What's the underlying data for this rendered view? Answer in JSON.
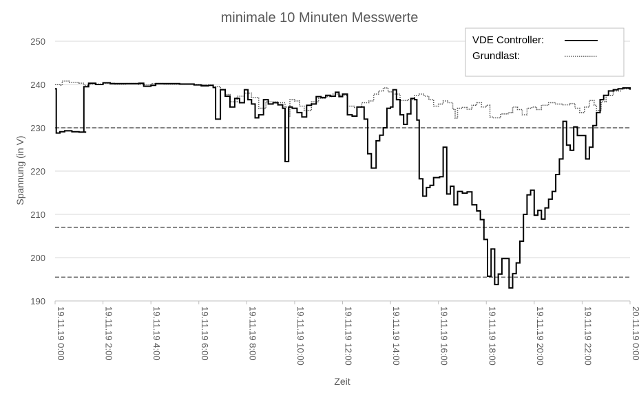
{
  "chart_data": {
    "type": "line",
    "title": "minimale 10 Minuten Messwerte",
    "xlabel": "Zeit",
    "ylabel": "Spannung (in V)",
    "ylim": [
      190,
      250
    ],
    "yticks": [
      190,
      200,
      210,
      220,
      230,
      240,
      250
    ],
    "xlim": [
      0,
      24
    ],
    "x_unit": "hours since 19.11.19 0:00",
    "xtick_labels": [
      "19.11.19 0:00",
      "19.11.19 2:00",
      "19.11.19 4:00",
      "19.11.19 6:00",
      "19.11.19 8:00",
      "19.11.19 10:00",
      "19.11.19 12:00",
      "19.11.19 14:00",
      "19.11.19 16:00",
      "19.11.19 18:00",
      "19.11.19 20:00",
      "19.11.19 22:00",
      "20.11.19 0:00"
    ],
    "grid": "horizontal",
    "legend": "top-right",
    "reference_lines": [
      230,
      207,
      195.5
    ],
    "series": [
      {
        "name": "VDE Controller:",
        "style": "solid",
        "color": "#000000",
        "points": [
          [
            0,
            239
          ],
          [
            0.05,
            228.8
          ],
          [
            0.2,
            229.1
          ],
          [
            0.4,
            229.3
          ],
          [
            0.7,
            229.1
          ],
          [
            1,
            229
          ],
          [
            1.3,
            229
          ],
          [
            1.2,
            229
          ],
          [
            1.18,
            229
          ],
          [
            1.2,
            239.5
          ],
          [
            1.4,
            240.3
          ],
          [
            1.7,
            240
          ],
          [
            2,
            240.4
          ],
          [
            2.3,
            240.2
          ],
          [
            3,
            240.2
          ],
          [
            3.5,
            240.3
          ],
          [
            3.7,
            239.6
          ],
          [
            4,
            239.8
          ],
          [
            4.2,
            240.2
          ],
          [
            4.8,
            240.2
          ],
          [
            5.2,
            240.1
          ],
          [
            5.8,
            239.9
          ],
          [
            6.1,
            239.7
          ],
          [
            6.4,
            239.8
          ],
          [
            6.6,
            239.3
          ],
          [
            6.7,
            232
          ],
          [
            6.9,
            238.8
          ],
          [
            7.1,
            237.3
          ],
          [
            7.3,
            234.8
          ],
          [
            7.5,
            236.8
          ],
          [
            7.7,
            235.8
          ],
          [
            7.9,
            238.8
          ],
          [
            8.05,
            236.5
          ],
          [
            8.2,
            235.5
          ],
          [
            8.35,
            232.3
          ],
          [
            8.5,
            233
          ],
          [
            8.7,
            236.5
          ],
          [
            8.9,
            235.5
          ],
          [
            9.1,
            235.8
          ],
          [
            9.3,
            235.3
          ],
          [
            9.5,
            234.5
          ],
          [
            9.6,
            222.2
          ],
          [
            9.75,
            234.8
          ],
          [
            9.9,
            234.5
          ],
          [
            10.1,
            233.5
          ],
          [
            10.3,
            232.5
          ],
          [
            10.5,
            235.2
          ],
          [
            10.7,
            235.5
          ],
          [
            10.9,
            237.2
          ],
          [
            11.1,
            237
          ],
          [
            11.3,
            237.5
          ],
          [
            11.5,
            237.3
          ],
          [
            11.7,
            238.2
          ],
          [
            11.85,
            237.2
          ],
          [
            12,
            237.8
          ],
          [
            12.2,
            233
          ],
          [
            12.4,
            232.7
          ],
          [
            12.6,
            234.8
          ],
          [
            12.8,
            234.8
          ],
          [
            12.9,
            232
          ],
          [
            13.05,
            224
          ],
          [
            13.2,
            220.7
          ],
          [
            13.4,
            227
          ],
          [
            13.55,
            228.3
          ],
          [
            13.7,
            230
          ],
          [
            13.85,
            234.5
          ],
          [
            14,
            234.8
          ],
          [
            14.1,
            238.8
          ],
          [
            14.25,
            236.5
          ],
          [
            14.4,
            233
          ],
          [
            14.55,
            230.8
          ],
          [
            14.7,
            233.2
          ],
          [
            14.85,
            236.8
          ],
          [
            15,
            236.5
          ],
          [
            15.1,
            231.8
          ],
          [
            15.2,
            218.2
          ],
          [
            15.35,
            214.2
          ],
          [
            15.5,
            216.2
          ],
          [
            15.65,
            216.7
          ],
          [
            15.8,
            218.5
          ],
          [
            16.05,
            218.7
          ],
          [
            16.2,
            225.5
          ],
          [
            16.35,
            214.7
          ],
          [
            16.5,
            216.5
          ],
          [
            16.65,
            212.2
          ],
          [
            16.8,
            215.3
          ],
          [
            17,
            214.9
          ],
          [
            17.2,
            215.2
          ],
          [
            17.4,
            212.2
          ],
          [
            17.6,
            210.8
          ],
          [
            17.75,
            208.8
          ],
          [
            17.9,
            204.2
          ],
          [
            18.05,
            195.7
          ],
          [
            18.2,
            202
          ],
          [
            18.35,
            193.8
          ],
          [
            18.5,
            196.2
          ],
          [
            18.65,
            199.8
          ],
          [
            18.85,
            199.8
          ],
          [
            18.95,
            193
          ],
          [
            19.1,
            196.3
          ],
          [
            19.25,
            198.8
          ],
          [
            19.4,
            203.8
          ],
          [
            19.55,
            210
          ],
          [
            19.7,
            214.5
          ],
          [
            19.85,
            215.6
          ],
          [
            20,
            209.8
          ],
          [
            20.15,
            210.9
          ],
          [
            20.3,
            208.9
          ],
          [
            20.45,
            211.5
          ],
          [
            20.6,
            213.5
          ],
          [
            20.75,
            215.3
          ],
          [
            20.9,
            219.2
          ],
          [
            21.05,
            222.8
          ],
          [
            21.2,
            231.5
          ],
          [
            21.35,
            226
          ],
          [
            21.5,
            224.8
          ],
          [
            21.65,
            230.2
          ],
          [
            21.8,
            228.2
          ],
          [
            22,
            228.2
          ],
          [
            22.15,
            222.8
          ],
          [
            22.3,
            225.5
          ],
          [
            22.45,
            230.5
          ],
          [
            22.6,
            233.5
          ],
          [
            22.75,
            236.5
          ],
          [
            22.9,
            237.5
          ],
          [
            23.1,
            238.5
          ],
          [
            23.3,
            238.8
          ],
          [
            23.5,
            239
          ],
          [
            23.7,
            239.2
          ],
          [
            24,
            238.8
          ]
        ]
      },
      {
        "name": "Grundlast:",
        "style": "dotted",
        "color": "#595959",
        "points": [
          [
            0,
            240
          ],
          [
            0.2,
            239.8
          ],
          [
            0.3,
            240.8
          ],
          [
            0.6,
            240.5
          ],
          [
            1,
            240.3
          ],
          [
            1.2,
            239.8
          ],
          [
            1.4,
            240.1
          ],
          [
            2,
            240.3
          ],
          [
            2.5,
            240.1
          ],
          [
            3,
            240.2
          ],
          [
            3.5,
            240
          ],
          [
            4,
            240.2
          ],
          [
            4.5,
            240.1
          ],
          [
            5,
            240.1
          ],
          [
            5.8,
            240
          ],
          [
            6.3,
            239.9
          ],
          [
            6.6,
            239.5
          ],
          [
            6.9,
            238.9
          ],
          [
            7.1,
            237.7
          ],
          [
            7.3,
            236
          ],
          [
            7.6,
            237.3
          ],
          [
            7.9,
            238
          ],
          [
            8.2,
            237
          ],
          [
            8.5,
            234.5
          ],
          [
            8.8,
            236
          ],
          [
            9.1,
            236
          ],
          [
            9.3,
            235.8
          ],
          [
            9.6,
            234.8
          ],
          [
            9.75,
            232.5
          ],
          [
            9.8,
            236.5
          ],
          [
            10,
            236.2
          ],
          [
            10.2,
            235
          ],
          [
            10.4,
            234
          ],
          [
            10.7,
            236
          ],
          [
            11,
            236.8
          ],
          [
            11.3,
            237.2
          ],
          [
            11.6,
            237.8
          ],
          [
            11.9,
            237.5
          ],
          [
            12.2,
            235
          ],
          [
            12.5,
            234.7
          ],
          [
            12.8,
            235.8
          ],
          [
            13.1,
            236.2
          ],
          [
            13.3,
            237.8
          ],
          [
            13.5,
            238.5
          ],
          [
            13.7,
            239.2
          ],
          [
            13.9,
            238.3
          ],
          [
            14.1,
            237.8
          ],
          [
            14.4,
            236.3
          ],
          [
            14.7,
            236.5
          ],
          [
            15,
            237.5
          ],
          [
            15.2,
            237.8
          ],
          [
            15.4,
            237.3
          ],
          [
            15.6,
            236.5
          ],
          [
            15.8,
            235
          ],
          [
            16,
            235.5
          ],
          [
            16.2,
            236.2
          ],
          [
            16.4,
            235.8
          ],
          [
            16.6,
            234.3
          ],
          [
            16.7,
            232.2
          ],
          [
            16.8,
            234.5
          ],
          [
            17,
            234.7
          ],
          [
            17.2,
            234.3
          ],
          [
            17.4,
            235.2
          ],
          [
            17.6,
            235.8
          ],
          [
            17.8,
            234.8
          ],
          [
            18,
            235.2
          ],
          [
            18.15,
            232.5
          ],
          [
            18.3,
            232.3
          ],
          [
            18.6,
            233.2
          ],
          [
            18.9,
            233.5
          ],
          [
            19.1,
            234.8
          ],
          [
            19.3,
            234.2
          ],
          [
            19.5,
            233
          ],
          [
            19.7,
            234.5
          ],
          [
            19.9,
            234.8
          ],
          [
            20.1,
            234.2
          ],
          [
            20.3,
            235.2
          ],
          [
            20.6,
            235.8
          ],
          [
            20.9,
            235.5
          ],
          [
            21.2,
            235.3
          ],
          [
            21.5,
            235.6
          ],
          [
            21.7,
            234.5
          ],
          [
            21.9,
            233.5
          ],
          [
            22.1,
            234.8
          ],
          [
            22.3,
            236.3
          ],
          [
            22.5,
            235.2
          ],
          [
            22.6,
            234
          ],
          [
            22.8,
            236
          ],
          [
            23,
            237.5
          ],
          [
            23.3,
            238.5
          ],
          [
            23.6,
            239
          ],
          [
            24,
            239
          ]
        ]
      }
    ]
  }
}
